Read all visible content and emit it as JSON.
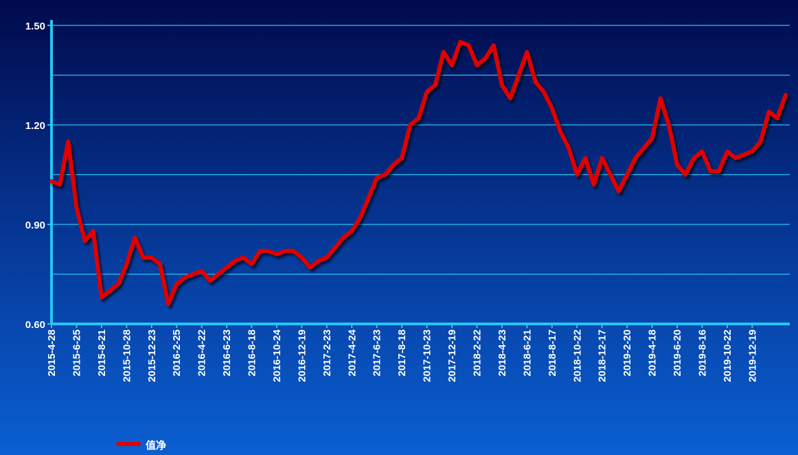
{
  "chart_data": {
    "type": "line",
    "categories": [
      "2015-4-28",
      null,
      null,
      "2015-6-25",
      null,
      null,
      "2015-8-21",
      null,
      null,
      "2015-10-28",
      null,
      null,
      "2015-12-23",
      null,
      null,
      "2016-2-25",
      null,
      null,
      "2016-4-22",
      null,
      null,
      "2016-6-23",
      null,
      null,
      "2016-8-18",
      null,
      null,
      "2016-10-24",
      null,
      null,
      "2016-12-19",
      null,
      null,
      "2017-2-23",
      null,
      null,
      "2017-4-24",
      null,
      null,
      "2017-6-23",
      null,
      null,
      "2017-8-18",
      null,
      null,
      "2017-10-23",
      null,
      null,
      "2017-12-19",
      null,
      null,
      "2018-2-22",
      null,
      null,
      "2018-4-23",
      null,
      null,
      "2018-6-21",
      null,
      null,
      "2018-8-17",
      null,
      null,
      "2018-10-22",
      null,
      null,
      "2018-12-17",
      null,
      null,
      "2019-2-20",
      null,
      null,
      "2019-4-18",
      null,
      null,
      "2019-6-20",
      null,
      null,
      "2019-8-16",
      null,
      null,
      "2019-10-22",
      null,
      null,
      "2019-12-19",
      null,
      null,
      null,
      null
    ],
    "series": [
      {
        "name": "值净",
        "color": "#e00000",
        "values": [
          1.03,
          1.02,
          1.15,
          0.95,
          0.85,
          0.88,
          0.68,
          0.7,
          0.72,
          0.78,
          0.86,
          0.8,
          0.8,
          0.78,
          0.66,
          0.72,
          0.74,
          0.75,
          0.76,
          0.73,
          0.75,
          0.77,
          0.79,
          0.8,
          0.78,
          0.82,
          0.82,
          0.81,
          0.82,
          0.82,
          0.8,
          0.77,
          0.79,
          0.8,
          0.83,
          0.86,
          0.88,
          0.92,
          0.98,
          1.04,
          1.05,
          1.08,
          1.1,
          1.2,
          1.22,
          1.3,
          1.32,
          1.42,
          1.38,
          1.45,
          1.44,
          1.38,
          1.4,
          1.44,
          1.32,
          1.28,
          1.35,
          1.42,
          1.33,
          1.3,
          1.25,
          1.18,
          1.13,
          1.05,
          1.1,
          1.02,
          1.1,
          1.05,
          1.0,
          1.05,
          1.1,
          1.13,
          1.16,
          1.28,
          1.2,
          1.08,
          1.05,
          1.1,
          1.12,
          1.06,
          1.06,
          1.12,
          1.1,
          1.11,
          1.12,
          1.15,
          1.24,
          1.22,
          1.29
        ]
      }
    ],
    "ylim": [
      0.6,
      1.5
    ],
    "yticks": [
      {
        "value": 0.6,
        "label": "0.60"
      },
      {
        "value": 0.9,
        "label": "0.90"
      },
      {
        "value": 1.2,
        "label": "1.20"
      },
      {
        "value": 1.5,
        "label": "1.50"
      }
    ],
    "minor_yticks": [
      0.75,
      1.05,
      1.35
    ],
    "grid": true
  }
}
